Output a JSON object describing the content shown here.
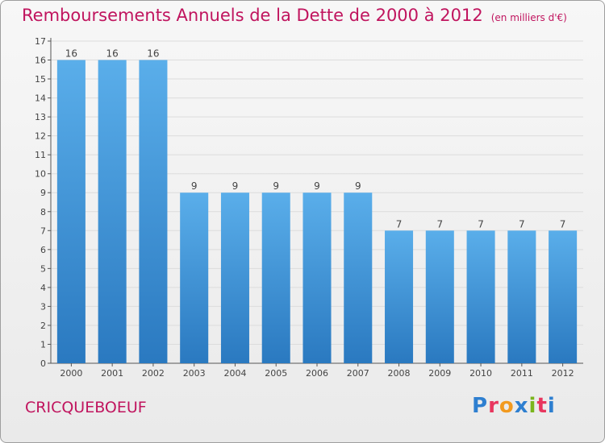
{
  "header": {
    "title": "Remboursements Annuels de la Dette de 2000 à 2012",
    "unit": "(en milliers d'€)"
  },
  "footer": {
    "commune": "CRICQUEBOEUF",
    "brand": "Proxiti",
    "brand_colors": [
      "#2e7fd0",
      "#e8365e",
      "#f29a1f",
      "#2e7fd0",
      "#7ab51d",
      "#e8365e",
      "#2e7fd0"
    ]
  },
  "colors": {
    "title": "#c0145e",
    "bar_top": "#5aaeea",
    "bar_bottom": "#2a79c0",
    "axis": "#555555",
    "grid": "#dcdcdc"
  },
  "chart_data": {
    "type": "bar",
    "categories": [
      "2000",
      "2001",
      "2002",
      "2003",
      "2004",
      "2005",
      "2006",
      "2007",
      "2008",
      "2009",
      "2010",
      "2011",
      "2012"
    ],
    "values": [
      16,
      16,
      16,
      9,
      9,
      9,
      9,
      9,
      7,
      7,
      7,
      7,
      7
    ],
    "data_labels": [
      "16",
      "16",
      "16",
      "9",
      "9",
      "9",
      "9",
      "9",
      "7",
      "7",
      "7",
      "7",
      "7"
    ],
    "title": "Remboursements Annuels de la Dette de 2000 à 2012",
    "xlabel": "",
    "ylabel": "",
    "ylim": [
      0,
      17
    ],
    "yticks": [
      0,
      1,
      2,
      3,
      4,
      5,
      6,
      7,
      8,
      9,
      10,
      11,
      12,
      13,
      14,
      15,
      16,
      17
    ],
    "grid": true,
    "legend": "none"
  }
}
